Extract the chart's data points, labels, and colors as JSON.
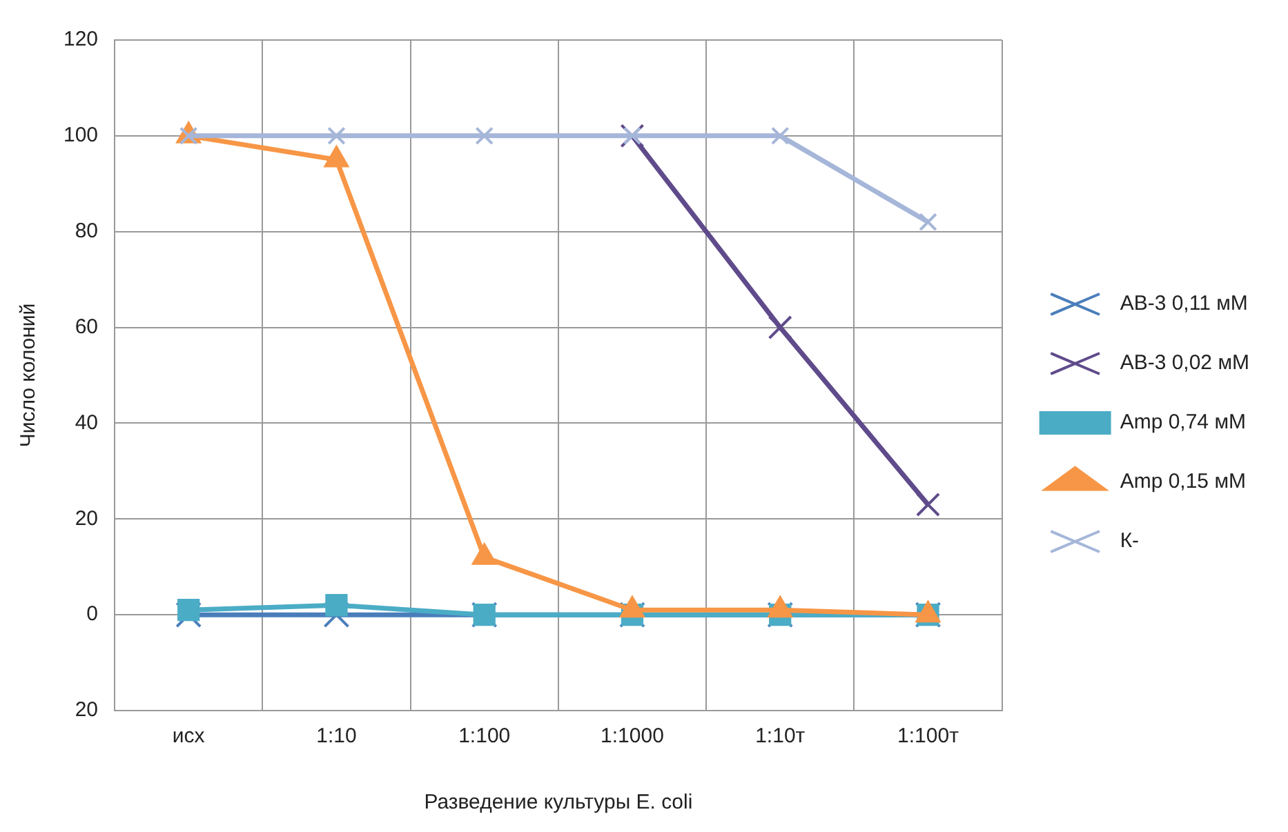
{
  "chart_data": {
    "type": "line",
    "xlabel": "Разведение культуры E. coli",
    "ylabel": "Число колоний",
    "categories": [
      "исх",
      "1:10",
      "1:100",
      "1:1000",
      "1:10т",
      "1:100т"
    ],
    "series": [
      {
        "name": "АВ-3 0,11 мМ",
        "color": "#4a7ebb",
        "marker": "cross",
        "values": [
          0,
          0,
          0,
          0,
          0,
          0
        ]
      },
      {
        "name": "АВ-3 0,02 мМ",
        "color": "#5f4b8b",
        "marker": "cross",
        "values": [
          null,
          null,
          null,
          100,
          60,
          23
        ]
      },
      {
        "name": "Amp 0,74 мМ",
        "color": "#4bacc6",
        "marker": "square",
        "values": [
          1,
          2,
          0,
          0,
          0,
          0
        ]
      },
      {
        "name": "Amp 0,15 мМ",
        "color": "#f79646",
        "marker": "triangle",
        "values": [
          100,
          95,
          12,
          1,
          1,
          0
        ]
      },
      {
        "name": "К-",
        "color": "#a5b6d9",
        "marker": "cross",
        "values": [
          100,
          100,
          100,
          100,
          100,
          82
        ]
      }
    ],
    "ylim": [
      -20,
      120
    ],
    "yticks": [
      {
        "value": -20,
        "label": "20"
      },
      0,
      20,
      40,
      60,
      80,
      100,
      120
    ],
    "grid": true,
    "legend": "right"
  }
}
